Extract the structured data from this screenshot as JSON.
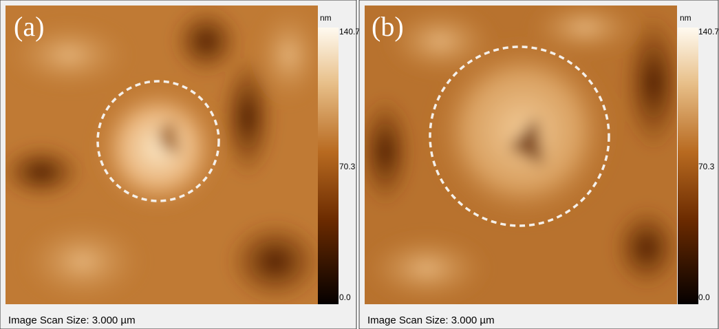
{
  "panels": [
    {
      "label": "(a)",
      "unit": "nm",
      "colorbar_ticks": [
        "140.7",
        "70.3",
        "0.0"
      ],
      "footer": "Image Scan Size:  3.000 µm"
    },
    {
      "label": "(b)",
      "unit": "nm",
      "colorbar_ticks": [
        "140.7",
        "70.3",
        "0.0"
      ],
      "footer": "Image Scan Size:  3.000 µm"
    }
  ]
}
